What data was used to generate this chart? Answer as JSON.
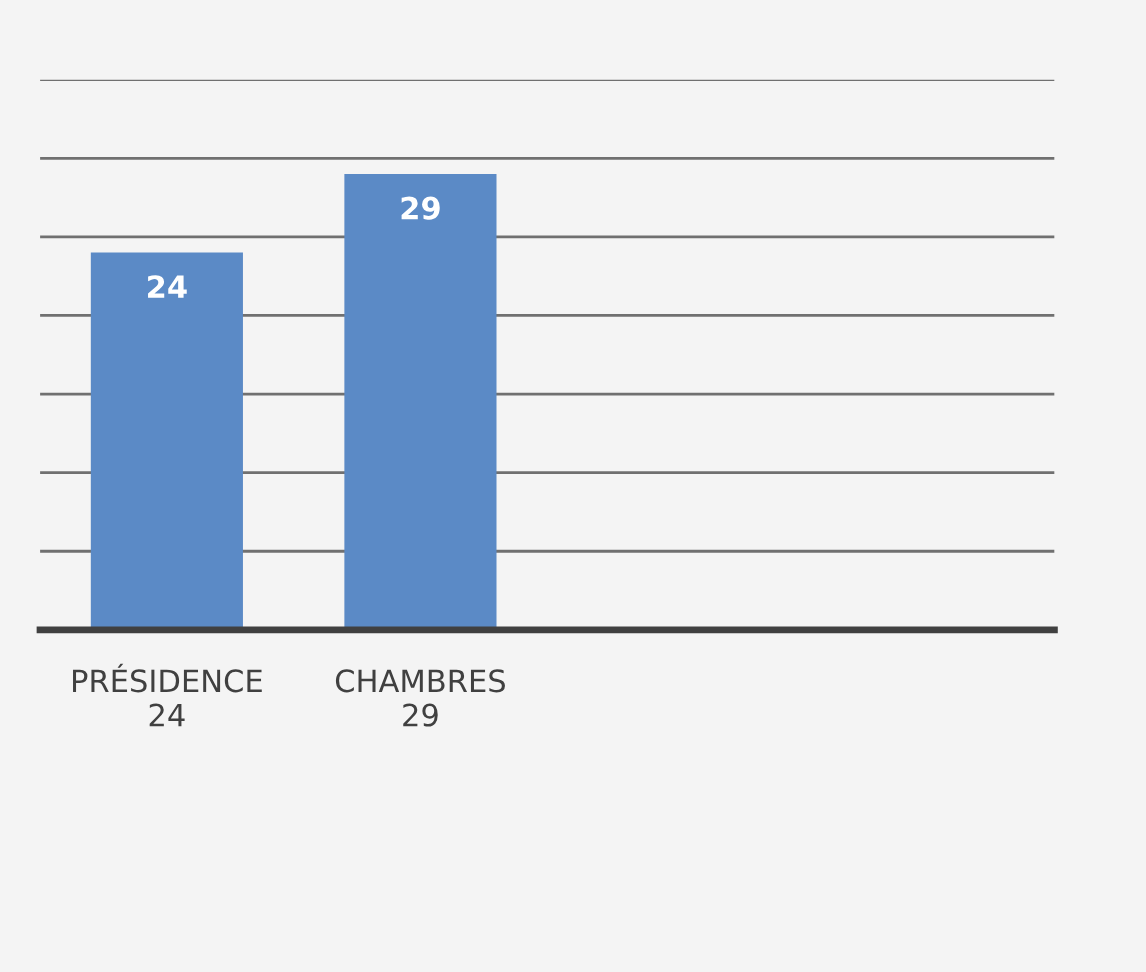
{
  "chart_data": {
    "type": "bar",
    "categories": [
      "PRÉSIDENCE\n24",
      "CHAMBRES\n29",
      null,
      null
    ],
    "values": [
      24,
      29,
      null,
      null
    ],
    "color": "#5b8ac6",
    "ylim": [
      0,
      35
    ],
    "yticks": [
      {
        "value": 0,
        "label": null
      },
      {
        "value": 5,
        "label": null
      },
      {
        "value": 10,
        "label": null
      },
      {
        "value": 15,
        "label": null
      },
      {
        "value": 20,
        "label": null
      },
      {
        "value": 25,
        "label": null
      },
      {
        "value": 30,
        "label": null
      },
      {
        "value": 35,
        "label": null
      }
    ],
    "grid": "y",
    "data_labels": true,
    "legend": false
  }
}
